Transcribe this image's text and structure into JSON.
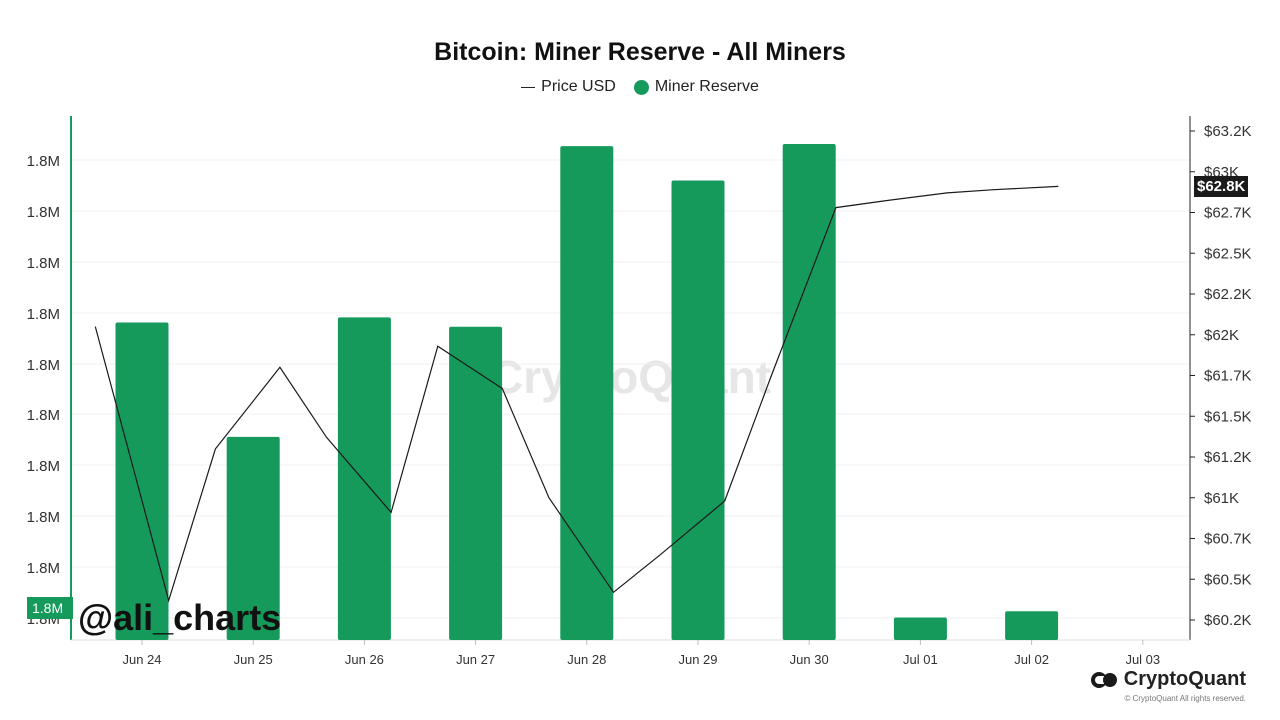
{
  "colors": {
    "bar": "#159a5b",
    "line": "#1a1a1a",
    "grid": "#f0f0f0",
    "axis": "#159a5b"
  },
  "watermark": "CryptoQuant",
  "handle": "@ali_charts",
  "brand": {
    "name": "CryptoQuant",
    "copyright": "© CryptoQuant All rights reserved."
  },
  "current_price_tag": "$62.8K",
  "current_reserve_tag": "1.8M",
  "chart_data": {
    "type": "bar",
    "title": "Bitcoin: Miner Reserve - All Miners",
    "legend": [
      "Price USD",
      "Miner Reserve"
    ],
    "legend_position": "top-center",
    "categories": [
      "Jun 24",
      "Jun 25",
      "Jun 26",
      "Jun 27",
      "Jun 28",
      "Jun 29",
      "Jun 30",
      "Jul 01",
      "Jul 02",
      "Jul 03"
    ],
    "left_axis_ticks": [
      "1.8M",
      "1.8M",
      "1.8M",
      "1.8M",
      "1.8M",
      "1.8M",
      "1.8M",
      "1.8M",
      "1.8M",
      "1.8M"
    ],
    "right_axis_ticks": [
      "$60.2K",
      "$60.5K",
      "$60.7K",
      "$61K",
      "$61.2K",
      "$61.5K",
      "$61.7K",
      "$62K",
      "$62.2K",
      "$62.5K",
      "$62.7K",
      "$63K",
      "$63.2K"
    ],
    "right_axis_values": [
      60200,
      60450,
      60700,
      60950,
      61200,
      61450,
      61700,
      61950,
      62200,
      62450,
      62700,
      62950,
      63200
    ],
    "grid": true,
    "series": [
      {
        "name": "Miner Reserve",
        "kind": "bar",
        "relative_heights": [
          0.608,
          0.389,
          0.618,
          0.6,
          0.946,
          0.88,
          0.95,
          0.043,
          0.055,
          null
        ]
      },
      {
        "name": "Price USD",
        "kind": "line",
        "x": [
          -0.42,
          0.24,
          0.66,
          1.24,
          1.66,
          2.24,
          2.66,
          3.24,
          3.66,
          4.24,
          4.66,
          5.24,
          5.66,
          6.24,
          6.66,
          7.24,
          7.66,
          8.24
        ],
        "values": [
          62000,
          60320,
          61250,
          61750,
          61320,
          60860,
          61880,
          61620,
          60950,
          60370,
          60600,
          60930,
          61700,
          62730,
          62770,
          62820,
          62840,
          62860
        ]
      }
    ]
  }
}
